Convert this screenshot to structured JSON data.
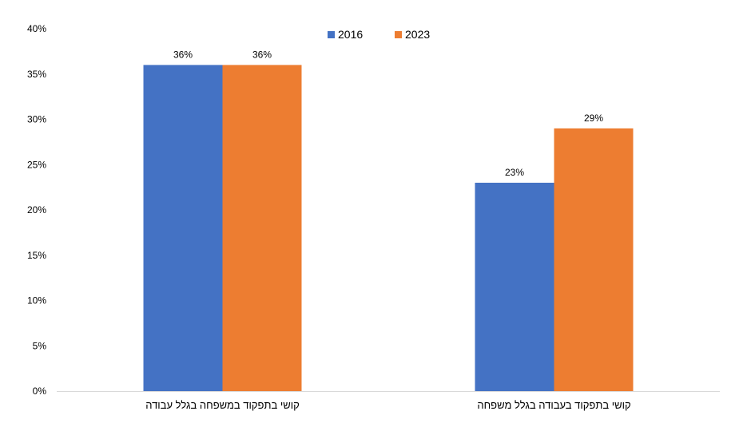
{
  "chart_data": {
    "type": "bar",
    "categories": [
      "קושי בתפקוד במשפחה בגלל עבודה",
      "קושי בתפקוד בעבודה בגלל משפחה"
    ],
    "series": [
      {
        "name": "2016",
        "color": "#4472C4",
        "values": [
          36,
          23
        ],
        "labels": [
          "36%",
          "23%"
        ]
      },
      {
        "name": "2023",
        "color": "#ED7D31",
        "values": [
          36,
          29
        ],
        "labels": [
          "36%",
          "29%"
        ]
      }
    ],
    "ylim": [
      0,
      40
    ],
    "yticks": [
      {
        "value": 0,
        "label": "0%"
      },
      {
        "value": 5,
        "label": "5%"
      },
      {
        "value": 10,
        "label": "10%"
      },
      {
        "value": 15,
        "label": "15%"
      },
      {
        "value": 20,
        "label": "20%"
      },
      {
        "value": 25,
        "label": "25%"
      },
      {
        "value": 30,
        "label": "30%"
      },
      {
        "value": 35,
        "label": "35%"
      },
      {
        "value": 40,
        "label": "40%"
      }
    ],
    "grid": false,
    "legend_position": "top",
    "axis_color": "#D9D9D9"
  }
}
